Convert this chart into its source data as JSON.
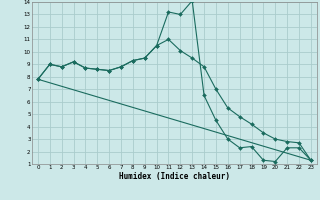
{
  "xlabel": "Humidex (Indice chaleur)",
  "bg_color": "#cce8e8",
  "grid_color": "#aacccc",
  "line_color": "#1a6b5e",
  "xlim": [
    -0.5,
    23.5
  ],
  "ylim": [
    1,
    14
  ],
  "xticks": [
    0,
    1,
    2,
    3,
    4,
    5,
    6,
    7,
    8,
    9,
    10,
    11,
    12,
    13,
    14,
    15,
    16,
    17,
    18,
    19,
    20,
    21,
    22,
    23
  ],
  "yticks": [
    1,
    2,
    3,
    4,
    5,
    6,
    7,
    8,
    9,
    10,
    11,
    12,
    13,
    14
  ],
  "series1_x": [
    0,
    1,
    2,
    3,
    4,
    5,
    6,
    7,
    8,
    9,
    10,
    11,
    12,
    13,
    14,
    15,
    16,
    17,
    18,
    19,
    20,
    21,
    22,
    23
  ],
  "series1_y": [
    7.8,
    9.0,
    8.8,
    9.2,
    8.7,
    8.6,
    8.5,
    8.8,
    9.3,
    9.5,
    10.5,
    13.2,
    13.0,
    14.1,
    6.5,
    4.5,
    3.0,
    2.3,
    2.4,
    1.3,
    1.2,
    2.3,
    2.3,
    1.3
  ],
  "series2_x": [
    0,
    1,
    2,
    3,
    4,
    5,
    6,
    7,
    8,
    9,
    10,
    11,
    12,
    13,
    14,
    15,
    16,
    17,
    18,
    19,
    20,
    21,
    22,
    23
  ],
  "series2_y": [
    7.8,
    9.0,
    8.8,
    9.2,
    8.7,
    8.6,
    8.5,
    8.8,
    9.3,
    9.5,
    10.5,
    11.0,
    10.1,
    9.5,
    8.8,
    7.0,
    5.5,
    4.8,
    4.2,
    3.5,
    3.0,
    2.8,
    2.7,
    1.3
  ],
  "series3_x": [
    0,
    23
  ],
  "series3_y": [
    7.8,
    1.3
  ]
}
